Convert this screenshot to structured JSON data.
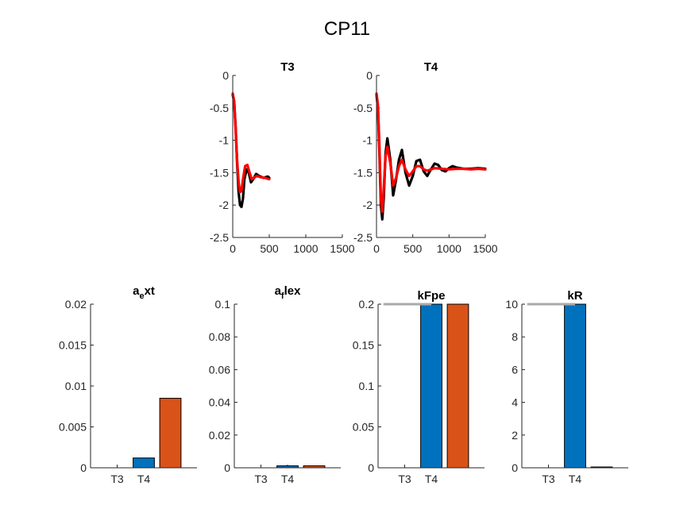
{
  "figure": {
    "title": "CP11"
  },
  "chart_data": [
    {
      "type": "line",
      "title": "T3",
      "xlim": [
        0,
        1500
      ],
      "ylim": [
        -2.5,
        0
      ],
      "xticks": [
        "0",
        "500",
        "1000",
        "1500"
      ],
      "yticks": [
        "0",
        "-0.5",
        "-1",
        "-1.5",
        "-2",
        "-2.5"
      ],
      "series": [
        {
          "color": "#000000",
          "x": [
            0,
            20,
            40,
            60,
            80,
            100,
            120,
            140,
            160,
            190,
            220,
            250,
            280,
            320,
            360,
            420,
            480,
            500
          ],
          "y": [
            -0.3,
            -0.4,
            -0.8,
            -1.35,
            -1.8,
            -2.0,
            -2.03,
            -1.9,
            -1.6,
            -1.45,
            -1.5,
            -1.65,
            -1.6,
            -1.52,
            -1.55,
            -1.58,
            -1.56,
            -1.58
          ]
        },
        {
          "color": "#ff0000",
          "x": [
            0,
            20,
            40,
            60,
            80,
            100,
            120,
            140,
            170,
            200,
            230,
            260,
            290,
            330,
            380,
            440,
            500
          ],
          "y": [
            -0.28,
            -0.4,
            -0.85,
            -1.3,
            -1.65,
            -1.8,
            -1.78,
            -1.6,
            -1.4,
            -1.38,
            -1.5,
            -1.6,
            -1.58,
            -1.55,
            -1.57,
            -1.58,
            -1.6
          ]
        }
      ]
    },
    {
      "type": "line",
      "title": "T4",
      "xlim": [
        0,
        1500
      ],
      "ylim": [
        -2.5,
        0
      ],
      "xticks": [
        "0",
        "500",
        "1000",
        "1500"
      ],
      "yticks": [
        "0",
        "-0.5",
        "-1",
        "-1.5",
        "-2",
        "-2.5"
      ],
      "series": [
        {
          "color": "#000000",
          "x": [
            0,
            20,
            40,
            60,
            80,
            100,
            125,
            150,
            190,
            230,
            270,
            310,
            350,
            400,
            450,
            500,
            550,
            600,
            650,
            700,
            750,
            800,
            850,
            900,
            950,
            1000,
            1050,
            1100,
            1200,
            1300,
            1400,
            1500
          ],
          "y": [
            -0.3,
            -0.5,
            -1.2,
            -2.0,
            -2.22,
            -1.9,
            -1.2,
            -0.97,
            -1.3,
            -1.85,
            -1.6,
            -1.3,
            -1.15,
            -1.5,
            -1.7,
            -1.55,
            -1.32,
            -1.3,
            -1.48,
            -1.55,
            -1.45,
            -1.36,
            -1.38,
            -1.46,
            -1.48,
            -1.43,
            -1.4,
            -1.42,
            -1.44,
            -1.44,
            -1.43,
            -1.44
          ]
        },
        {
          "color": "#ff0000",
          "x": [
            0,
            20,
            40,
            60,
            80,
            100,
            125,
            150,
            190,
            230,
            270,
            310,
            350,
            400,
            450,
            500,
            550,
            600,
            650,
            700,
            800,
            900,
            1000,
            1100,
            1200,
            1300,
            1400,
            1500
          ],
          "y": [
            -0.28,
            -0.45,
            -1.1,
            -1.9,
            -2.1,
            -1.75,
            -1.25,
            -1.1,
            -1.35,
            -1.7,
            -1.58,
            -1.4,
            -1.3,
            -1.45,
            -1.55,
            -1.48,
            -1.4,
            -1.4,
            -1.45,
            -1.47,
            -1.43,
            -1.44,
            -1.45,
            -1.44,
            -1.44,
            -1.45,
            -1.44,
            -1.45
          ]
        }
      ]
    },
    {
      "type": "bar",
      "title": "a_ext",
      "title_main": "a",
      "title_sub": "e",
      "title_rest": "xt",
      "ylim": [
        0,
        0.02
      ],
      "yticks": [
        "0",
        "0.005",
        "0.01",
        "0.015",
        "0.02"
      ],
      "xticks": [
        "T3",
        "T4"
      ],
      "categories": [
        "T3",
        "T4",
        ""
      ],
      "values": [
        0,
        0.0012,
        0.0085
      ],
      "colors": [
        "#0072bd",
        "#0072bd",
        "#d95319"
      ]
    },
    {
      "type": "bar",
      "title": "a_flex",
      "title_main": "a",
      "title_sub": "f",
      "title_rest": "lex",
      "ylim": [
        0,
        0.1
      ],
      "yticks": [
        "0",
        "0.02",
        "0.04",
        "0.06",
        "0.08",
        "0.1"
      ],
      "xticks": [
        "T3",
        "T4"
      ],
      "categories": [
        "T3",
        "T4",
        ""
      ],
      "values": [
        0,
        0.0012,
        0.0012
      ],
      "colors": [
        "#0072bd",
        "#0072bd",
        "#d95319"
      ]
    },
    {
      "type": "bar",
      "title": "kFpe",
      "ylim": [
        0,
        0.2
      ],
      "yticks": [
        "0",
        "0.05",
        "0.1",
        "0.15",
        "0.2"
      ],
      "xticks": [
        "T3",
        "T4"
      ],
      "categories": [
        "T3",
        "T4",
        ""
      ],
      "values": [
        0,
        0.2,
        0.2
      ],
      "colors": [
        "#0072bd",
        "#0072bd",
        "#d95319"
      ],
      "upper_limit_line": {
        "value": 0.2,
        "color": "#aaaaaa"
      }
    },
    {
      "type": "bar",
      "title": "kR",
      "ylim": [
        0,
        10
      ],
      "yticks": [
        "0",
        "2",
        "4",
        "6",
        "8",
        "10"
      ],
      "xticks": [
        "T3",
        "T4"
      ],
      "categories": [
        "T3",
        "T4",
        ""
      ],
      "values": [
        0,
        10,
        0.05
      ],
      "colors": [
        "#0072bd",
        "#0072bd",
        "#d95319"
      ],
      "upper_limit_line": {
        "value": 10,
        "color": "#aaaaaa"
      }
    }
  ]
}
